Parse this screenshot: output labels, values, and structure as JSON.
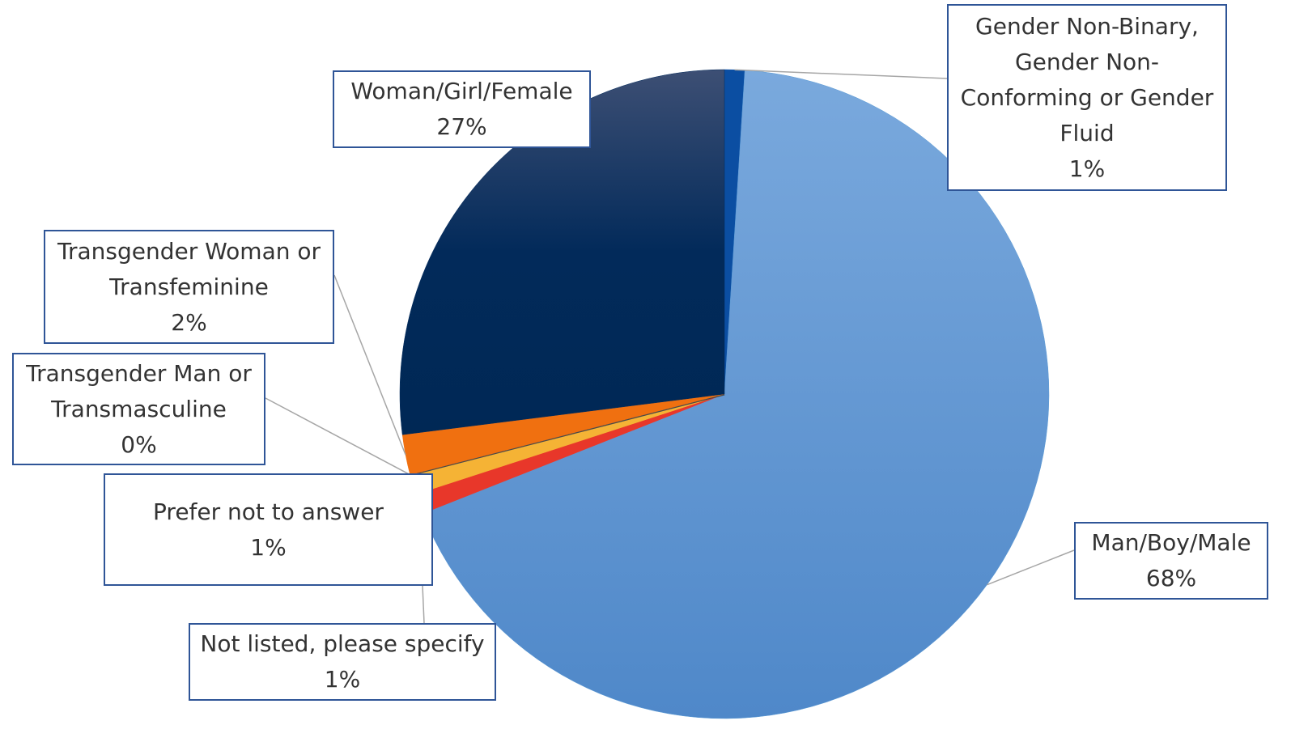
{
  "chart_data": {
    "type": "pie",
    "categories": [
      "Gender Non-Binary, Gender Non-Conforming or Gender Fluid",
      "Man/Boy/Male",
      "Not listed, please specify",
      "Prefer not to answer",
      "Transgender Man or Transmasculine",
      "Transgender Woman or Transfeminine",
      "Woman/Girl/Female"
    ],
    "values": [
      1,
      68,
      1,
      1,
      0,
      2,
      27
    ],
    "value_labels": [
      "1%",
      "68%",
      "1%",
      "1%",
      "0%",
      "2%",
      "27%"
    ],
    "colors": [
      "#0b4ea2",
      "#5b9bd5",
      "#e8372a",
      "#f5b335",
      "#4a4a4a",
      "#f07010",
      "#032b5c"
    ]
  }
}
